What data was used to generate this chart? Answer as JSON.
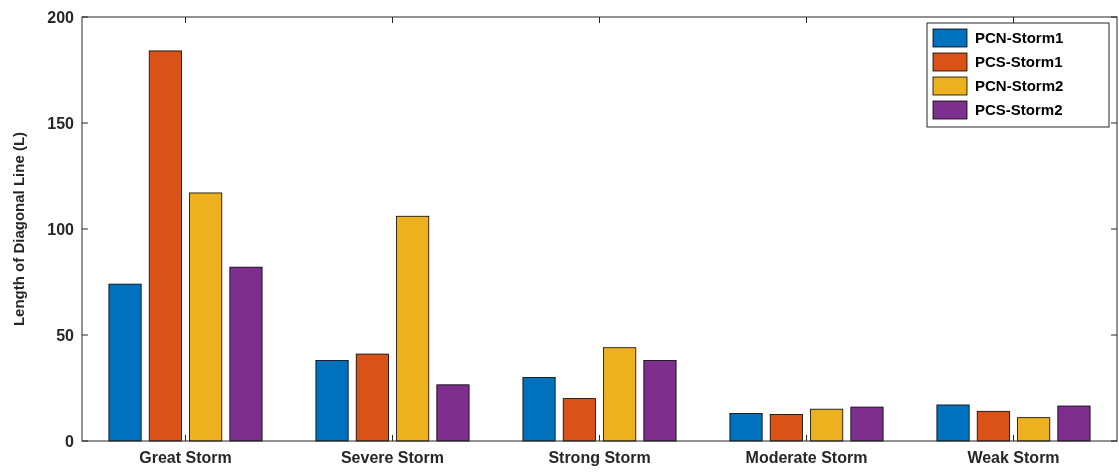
{
  "chart_data": {
    "type": "bar",
    "ylabel": "Length of Diagonal Line (L)",
    "categories": [
      "Great Storm",
      "Severe Storm",
      "Strong Storm",
      "Moderate Storm",
      "Weak Storm"
    ],
    "series": [
      {
        "name": "PCN-Storm1",
        "color": "#0072bd",
        "values": [
          74,
          38,
          30,
          13,
          17
        ]
      },
      {
        "name": "PCS-Storm1",
        "color": "#d95319",
        "values": [
          184,
          41,
          20,
          12.5,
          14
        ]
      },
      {
        "name": "PCN-Storm2",
        "color": "#edb120",
        "values": [
          117,
          106,
          44,
          15,
          11
        ]
      },
      {
        "name": "PCS-Storm2",
        "color": "#7e2f8e",
        "values": [
          82,
          26.5,
          38,
          16,
          16.5
        ]
      }
    ],
    "ylim": [
      0,
      200
    ],
    "yticks": [
      0,
      50,
      100,
      150,
      200
    ],
    "grid": false,
    "legend": "top right"
  }
}
